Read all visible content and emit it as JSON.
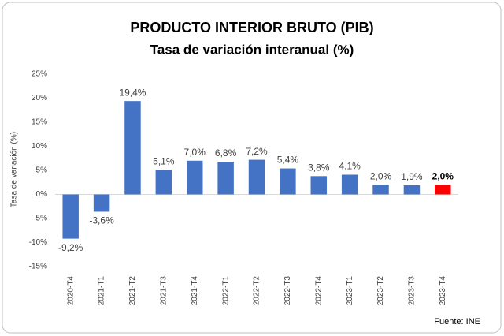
{
  "chart_data": {
    "type": "bar",
    "title": "PRODUCTO INTERIOR BRUTO (PIB)",
    "subtitle": "Tasa de variación interanual (%)",
    "y_label": "Tasa de variación (%)",
    "source": "Fuente: INE",
    "categories": [
      "2020-T4",
      "2021-T1",
      "2021-T2",
      "2021-T3",
      "2021-T4",
      "2022-T1",
      "2022-T2",
      "2022-T3",
      "2022-T4",
      "2023-T1",
      "2023-T2",
      "2023-T3",
      "2023-T4"
    ],
    "values": [
      -9.2,
      -3.6,
      19.4,
      5.1,
      7.0,
      6.8,
      7.2,
      5.4,
      3.8,
      4.1,
      2.0,
      1.9,
      2.0
    ],
    "value_labels": [
      "-9,2%",
      "-3,6%",
      "19,4%",
      "5,1%",
      "7,0%",
      "6,8%",
      "7,2%",
      "5,4%",
      "3,8%",
      "4,1%",
      "2,0%",
      "1,9%",
      "2,0%"
    ],
    "colors": [
      "#4472c4",
      "#4472c4",
      "#4472c4",
      "#4472c4",
      "#4472c4",
      "#4472c4",
      "#4472c4",
      "#4472c4",
      "#4472c4",
      "#4472c4",
      "#4472c4",
      "#4472c4",
      "#ff0000"
    ],
    "ylim": [
      -15,
      25
    ],
    "yticks": [
      {
        "value": -15,
        "label": "-15%"
      },
      {
        "value": -10,
        "label": "-10%"
      },
      {
        "value": -5,
        "label": "-5%"
      },
      {
        "value": 0,
        "label": "0%"
      },
      {
        "value": 5,
        "label": "5%"
      },
      {
        "value": 10,
        "label": "10%"
      },
      {
        "value": 15,
        "label": "15%"
      },
      {
        "value": 20,
        "label": "20%"
      },
      {
        "value": 25,
        "label": "25%"
      }
    ],
    "grid": false
  }
}
